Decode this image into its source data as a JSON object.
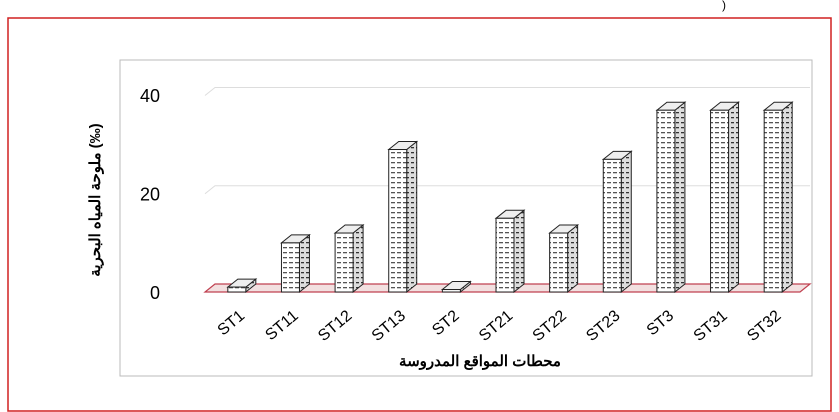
{
  "chart_data": {
    "type": "bar3d",
    "corner_text": ")",
    "y_label": "ملوحة المياه البحرية (‰)",
    "x_label": "محطات المواقع المدروسة",
    "categories": [
      "ST1",
      "ST11",
      "ST12",
      "ST13",
      "ST2",
      "ST21",
      "ST22",
      "ST23",
      "ST3",
      "ST31",
      "ST32"
    ],
    "values": [
      1,
      10,
      12,
      29,
      0.5,
      15,
      12,
      27,
      37,
      37,
      37
    ],
    "color": "#ffffff",
    "ylim": [
      0,
      46
    ],
    "yticks": [
      0,
      20,
      40
    ],
    "grid": true
  }
}
